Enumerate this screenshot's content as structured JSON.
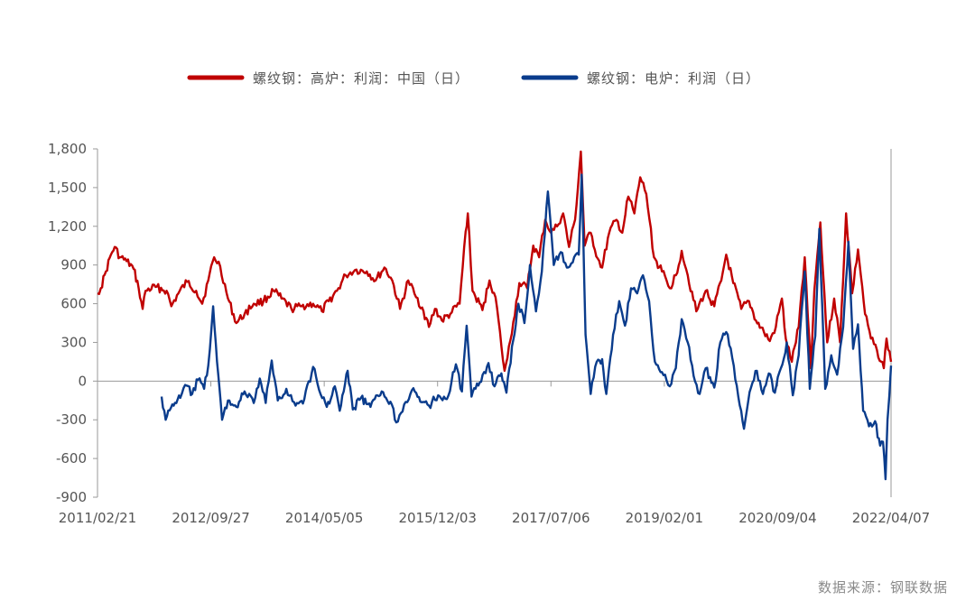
{
  "chart_data": {
    "type": "line",
    "title": "",
    "xlabel": "",
    "ylabel": "",
    "ylim": [
      -900,
      1800
    ],
    "y_ticks": [
      1800,
      1500,
      1200,
      900,
      600,
      300,
      0,
      -300,
      -600,
      -900
    ],
    "y_tick_labels": [
      "1,800",
      "1,500",
      "1,200",
      "900",
      "600",
      "300",
      "0",
      "-300",
      "-600",
      "-900"
    ],
    "x_range": [
      "2011/02/21",
      "2022/04/07"
    ],
    "x_tick_labels": [
      "2011/02/21",
      "2012/09/27",
      "2014/05/05",
      "2015/12/03",
      "2017/07/06",
      "2019/02/01",
      "2020/09/04",
      "2022/04/07"
    ],
    "grid": false,
    "legend_position": "top",
    "series": [
      {
        "name": "螺纹钢：高炉：利润：中国（日）",
        "color": "#c00000",
        "points": [
          [
            "2011-02-21",
            680
          ],
          [
            "2011-03-10",
            720
          ],
          [
            "2011-04-05",
            850
          ],
          [
            "2011-05-01",
            980
          ],
          [
            "2011-05-20",
            1040
          ],
          [
            "2011-06-15",
            960
          ],
          [
            "2011-07-20",
            930
          ],
          [
            "2011-08-25",
            870
          ],
          [
            "2011-09-20",
            720
          ],
          [
            "2011-10-10",
            560
          ],
          [
            "2011-10-25",
            700
          ],
          [
            "2011-12-15",
            730
          ],
          [
            "2012-02-10",
            700
          ],
          [
            "2012-03-05",
            580
          ],
          [
            "2012-04-10",
            680
          ],
          [
            "2012-05-25",
            770
          ],
          [
            "2012-07-10",
            700
          ],
          [
            "2012-08-10",
            600
          ],
          [
            "2012-09-10",
            780
          ],
          [
            "2012-10-10",
            960
          ],
          [
            "2012-11-10",
            890
          ],
          [
            "2012-12-20",
            640
          ],
          [
            "2013-02-01",
            450
          ],
          [
            "2013-03-15",
            520
          ],
          [
            "2013-05-01",
            600
          ],
          [
            "2013-06-20",
            620
          ],
          [
            "2013-08-10",
            700
          ],
          [
            "2013-09-20",
            640
          ],
          [
            "2013-11-10",
            560
          ],
          [
            "2014-01-01",
            580
          ],
          [
            "2014-03-01",
            600
          ],
          [
            "2014-04-15",
            540
          ],
          [
            "2014-05-20",
            620
          ],
          [
            "2014-07-01",
            700
          ],
          [
            "2014-08-15",
            820
          ],
          [
            "2014-10-01",
            860
          ],
          [
            "2014-12-01",
            850
          ],
          [
            "2015-01-15",
            780
          ],
          [
            "2015-03-01",
            880
          ],
          [
            "2015-04-10",
            780
          ],
          [
            "2015-05-20",
            560
          ],
          [
            "2015-07-01",
            780
          ],
          [
            "2015-08-10",
            650
          ],
          [
            "2015-09-10",
            570
          ],
          [
            "2015-10-15",
            420
          ],
          [
            "2015-11-15",
            560
          ],
          [
            "2015-12-20",
            470
          ],
          [
            "2016-02-01",
            520
          ],
          [
            "2016-03-20",
            600
          ],
          [
            "2016-04-20",
            1160
          ],
          [
            "2016-05-01",
            1300
          ],
          [
            "2016-05-25",
            700
          ],
          [
            "2016-07-15",
            550
          ],
          [
            "2016-08-20",
            780
          ],
          [
            "2016-09-20",
            650
          ],
          [
            "2016-10-20",
            270
          ],
          [
            "2016-11-05",
            80
          ],
          [
            "2016-11-20",
            180
          ],
          [
            "2016-12-20",
            460
          ],
          [
            "2017-01-20",
            760
          ],
          [
            "2017-03-01",
            720
          ],
          [
            "2017-04-01",
            1050
          ],
          [
            "2017-05-01",
            960
          ],
          [
            "2017-06-01",
            1250
          ],
          [
            "2017-07-01",
            1150
          ],
          [
            "2017-08-01",
            1200
          ],
          [
            "2017-09-01",
            1300
          ],
          [
            "2017-10-01",
            1040
          ],
          [
            "2017-11-01",
            1250
          ],
          [
            "2017-12-01",
            1780
          ],
          [
            "2017-12-20",
            1050
          ],
          [
            "2018-01-20",
            1150
          ],
          [
            "2018-02-25",
            950
          ],
          [
            "2018-03-20",
            880
          ],
          [
            "2018-04-25",
            1150
          ],
          [
            "2018-06-01",
            1250
          ],
          [
            "2018-07-01",
            1150
          ],
          [
            "2018-08-01",
            1430
          ],
          [
            "2018-09-01",
            1300
          ],
          [
            "2018-10-01",
            1580
          ],
          [
            "2018-11-01",
            1450
          ],
          [
            "2018-12-10",
            960
          ],
          [
            "2019-01-20",
            850
          ],
          [
            "2019-03-01",
            720
          ],
          [
            "2019-04-01",
            820
          ],
          [
            "2019-05-01",
            1010
          ],
          [
            "2019-06-01",
            820
          ],
          [
            "2019-07-15",
            540
          ],
          [
            "2019-09-01",
            700
          ],
          [
            "2019-10-15",
            580
          ],
          [
            "2019-11-20",
            780
          ],
          [
            "2019-12-15",
            980
          ],
          [
            "2020-01-20",
            760
          ],
          [
            "2020-03-01",
            560
          ],
          [
            "2020-04-10",
            620
          ],
          [
            "2020-05-15",
            470
          ],
          [
            "2020-06-25",
            380
          ],
          [
            "2020-07-25",
            310
          ],
          [
            "2020-08-25",
            420
          ],
          [
            "2020-09-25",
            640
          ],
          [
            "2020-10-15",
            330
          ],
          [
            "2020-11-15",
            150
          ],
          [
            "2020-12-20",
            420
          ],
          [
            "2021-01-20",
            960
          ],
          [
            "2021-02-20",
            100
          ],
          [
            "2021-03-10",
            700
          ],
          [
            "2021-04-10",
            1230
          ],
          [
            "2021-05-15",
            300
          ],
          [
            "2021-06-20",
            640
          ],
          [
            "2021-07-20",
            300
          ],
          [
            "2021-08-20",
            1300
          ],
          [
            "2021-09-20",
            680
          ],
          [
            "2021-10-20",
            1020
          ],
          [
            "2021-11-25",
            520
          ],
          [
            "2021-12-25",
            330
          ],
          [
            "2022-01-25",
            240
          ],
          [
            "2022-03-01",
            100
          ],
          [
            "2022-03-15",
            330
          ],
          [
            "2022-04-07",
            150
          ]
        ]
      },
      {
        "name": "螺纹钢：电炉：利润（日）",
        "color": "#0a3c8c",
        "points": [
          [
            "2012-01-15",
            -120
          ],
          [
            "2012-02-05",
            -300
          ],
          [
            "2012-03-10",
            -180
          ],
          [
            "2012-04-20",
            -130
          ],
          [
            "2012-05-15",
            -30
          ],
          [
            "2012-06-20",
            -100
          ],
          [
            "2012-07-20",
            10
          ],
          [
            "2012-08-20",
            -60
          ],
          [
            "2012-09-10",
            120
          ],
          [
            "2012-10-05",
            580
          ],
          [
            "2012-10-25",
            150
          ],
          [
            "2012-11-20",
            -300
          ],
          [
            "2012-12-20",
            -150
          ],
          [
            "2013-02-01",
            -200
          ],
          [
            "2013-03-15",
            -80
          ],
          [
            "2013-05-01",
            -170
          ],
          [
            "2013-06-01",
            20
          ],
          [
            "2013-07-01",
            -170
          ],
          [
            "2013-08-01",
            160
          ],
          [
            "2013-09-01",
            -150
          ],
          [
            "2013-10-15",
            -60
          ],
          [
            "2013-12-01",
            -190
          ],
          [
            "2014-01-15",
            -140
          ],
          [
            "2014-03-01",
            110
          ],
          [
            "2014-04-01",
            -70
          ],
          [
            "2014-05-10",
            -200
          ],
          [
            "2014-06-20",
            -40
          ],
          [
            "2014-07-15",
            -230
          ],
          [
            "2014-08-25",
            80
          ],
          [
            "2014-09-20",
            -220
          ],
          [
            "2014-11-01",
            -130
          ],
          [
            "2014-12-20",
            -200
          ],
          [
            "2015-02-15",
            -80
          ],
          [
            "2015-04-01",
            -160
          ],
          [
            "2015-05-01",
            -320
          ],
          [
            "2015-06-10",
            -180
          ],
          [
            "2015-07-20",
            -70
          ],
          [
            "2015-09-01",
            -160
          ],
          [
            "2015-10-15",
            -190
          ],
          [
            "2015-12-01",
            -110
          ],
          [
            "2016-01-15",
            -140
          ],
          [
            "2016-03-01",
            130
          ],
          [
            "2016-04-01",
            -80
          ],
          [
            "2016-04-25",
            430
          ],
          [
            "2016-05-20",
            -120
          ],
          [
            "2016-07-01",
            -10
          ],
          [
            "2016-08-15",
            140
          ],
          [
            "2016-09-15",
            -40
          ],
          [
            "2016-10-20",
            60
          ],
          [
            "2016-11-15",
            -90
          ],
          [
            "2016-12-20",
            320
          ],
          [
            "2017-01-15",
            600
          ],
          [
            "2017-02-15",
            450
          ],
          [
            "2017-03-15",
            900
          ],
          [
            "2017-04-15",
            540
          ],
          [
            "2017-05-15",
            850
          ],
          [
            "2017-06-15",
            1470
          ],
          [
            "2017-07-15",
            900
          ],
          [
            "2017-08-20",
            1000
          ],
          [
            "2017-09-20",
            880
          ],
          [
            "2017-10-20",
            920
          ],
          [
            "2017-11-20",
            980
          ],
          [
            "2017-12-05",
            1600
          ],
          [
            "2017-12-25",
            360
          ],
          [
            "2018-01-20",
            -100
          ],
          [
            "2018-02-20",
            150
          ],
          [
            "2018-03-20",
            170
          ],
          [
            "2018-04-10",
            -100
          ],
          [
            "2018-05-15",
            360
          ],
          [
            "2018-06-15",
            620
          ],
          [
            "2018-07-15",
            430
          ],
          [
            "2018-08-15",
            720
          ],
          [
            "2018-09-15",
            680
          ],
          [
            "2018-10-15",
            820
          ],
          [
            "2018-11-15",
            620
          ],
          [
            "2018-12-15",
            150
          ],
          [
            "2019-01-20",
            70
          ],
          [
            "2019-03-01",
            -40
          ],
          [
            "2019-04-01",
            100
          ],
          [
            "2019-05-01",
            480
          ],
          [
            "2019-06-01",
            300
          ],
          [
            "2019-07-01",
            40
          ],
          [
            "2019-08-01",
            -100
          ],
          [
            "2019-09-01",
            100
          ],
          [
            "2019-10-15",
            -50
          ],
          [
            "2019-11-15",
            300
          ],
          [
            "2019-12-15",
            380
          ],
          [
            "2020-01-15",
            180
          ],
          [
            "2020-02-15",
            -120
          ],
          [
            "2020-03-15",
            -370
          ],
          [
            "2020-04-20",
            -50
          ],
          [
            "2020-05-20",
            80
          ],
          [
            "2020-06-20",
            -100
          ],
          [
            "2020-07-20",
            60
          ],
          [
            "2020-08-20",
            -90
          ],
          [
            "2020-09-20",
            100
          ],
          [
            "2020-10-20",
            300
          ],
          [
            "2020-11-20",
            -110
          ],
          [
            "2020-12-20",
            200
          ],
          [
            "2021-01-20",
            850
          ],
          [
            "2021-02-15",
            -60
          ],
          [
            "2021-03-15",
            350
          ],
          [
            "2021-04-05",
            1180
          ],
          [
            "2021-05-05",
            -60
          ],
          [
            "2021-06-05",
            200
          ],
          [
            "2021-07-05",
            50
          ],
          [
            "2021-08-05",
            420
          ],
          [
            "2021-09-01",
            1080
          ],
          [
            "2021-09-25",
            250
          ],
          [
            "2021-10-20",
            440
          ],
          [
            "2021-11-15",
            -230
          ],
          [
            "2021-12-15",
            -350
          ],
          [
            "2022-01-15",
            -310
          ],
          [
            "2022-02-10",
            -500
          ],
          [
            "2022-02-25",
            -470
          ],
          [
            "2022-03-10",
            -760
          ],
          [
            "2022-03-20",
            -300
          ],
          [
            "2022-04-07",
            120
          ]
        ]
      }
    ]
  },
  "source": "数据来源：钢联数据"
}
